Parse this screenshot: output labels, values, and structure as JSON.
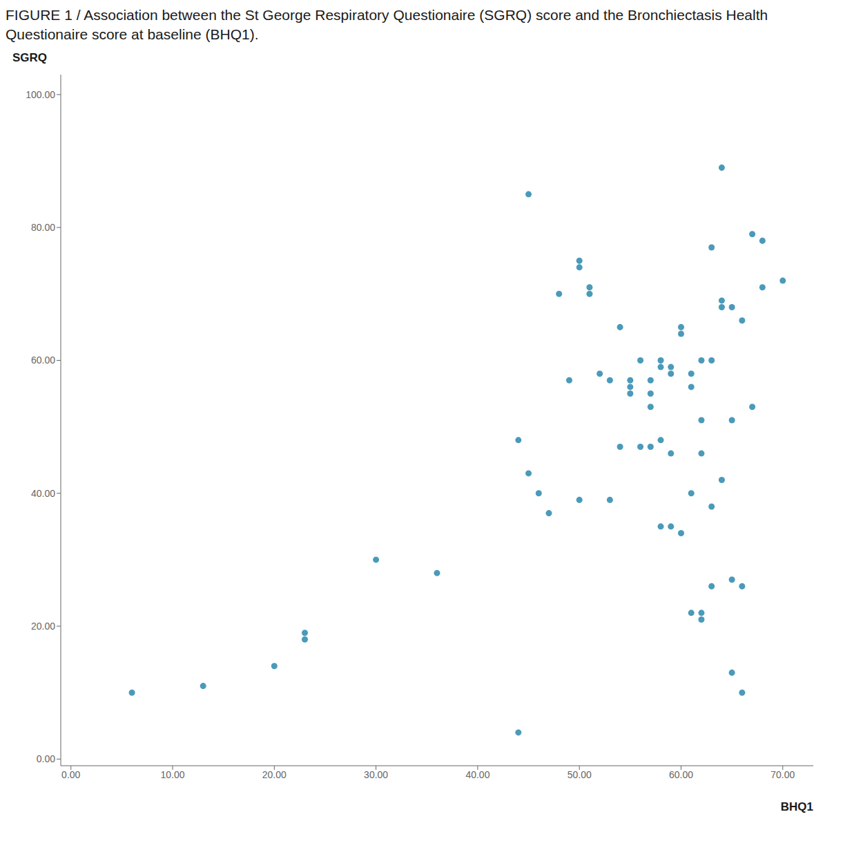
{
  "chart_data": {
    "type": "scatter",
    "title": "FIGURE 1 / Association between the St George Respiratory Questionaire (SGRQ) score and the Bronchiectasis Health Questionaire score at baseline (BHQ1).",
    "x_label": "BHQ1",
    "y_label": "SGRQ",
    "xlim": [
      -1,
      73
    ],
    "ylim": [
      -1,
      103
    ],
    "xticks": [
      {
        "value": 0,
        "label": "0.00"
      },
      {
        "value": 10,
        "label": "10.00"
      },
      {
        "value": 20,
        "label": "20.00"
      },
      {
        "value": 30,
        "label": "30.00"
      },
      {
        "value": 40,
        "label": "40.00"
      },
      {
        "value": 50,
        "label": "50.00"
      },
      {
        "value": 60,
        "label": "60.00"
      },
      {
        "value": 70,
        "label": "70.00"
      }
    ],
    "yticks": [
      {
        "value": 0,
        "label": "0.00"
      },
      {
        "value": 20,
        "label": "20.00"
      },
      {
        "value": 40,
        "label": "40.00"
      },
      {
        "value": 60,
        "label": "60.00"
      },
      {
        "value": 80,
        "label": "80.00"
      },
      {
        "value": 100,
        "label": "100.00"
      }
    ],
    "color": "#4a9aba",
    "grid": false,
    "x": [
      6,
      13,
      20,
      23,
      23,
      30,
      36,
      44,
      44,
      45,
      45,
      46,
      47,
      48,
      49,
      50,
      50,
      50,
      51,
      51,
      52,
      53,
      53,
      54,
      54,
      55,
      55,
      55,
      56,
      56,
      57,
      57,
      57,
      57,
      58,
      58,
      58,
      58,
      59,
      59,
      59,
      59,
      60,
      60,
      60,
      61,
      61,
      61,
      61,
      62,
      62,
      62,
      62,
      62,
      63,
      63,
      63,
      63,
      64,
      64,
      64,
      64,
      65,
      65,
      65,
      65,
      66,
      66,
      66,
      67,
      67,
      68,
      68,
      70
    ],
    "values": [
      10,
      11,
      14,
      19,
      18,
      30,
      28,
      48,
      4,
      85,
      43,
      40,
      37,
      70,
      57,
      75,
      74,
      39,
      70,
      71,
      58,
      57,
      39,
      65,
      47,
      57,
      56,
      55,
      60,
      47,
      57,
      55,
      53,
      47,
      60,
      59,
      48,
      35,
      59,
      58,
      46,
      35,
      65,
      64,
      34,
      58,
      56,
      40,
      22,
      60,
      51,
      46,
      22,
      21,
      77,
      60,
      38,
      26,
      89,
      69,
      68,
      42,
      68,
      51,
      27,
      13,
      66,
      26,
      10,
      79,
      53,
      78,
      71,
      72
    ]
  }
}
